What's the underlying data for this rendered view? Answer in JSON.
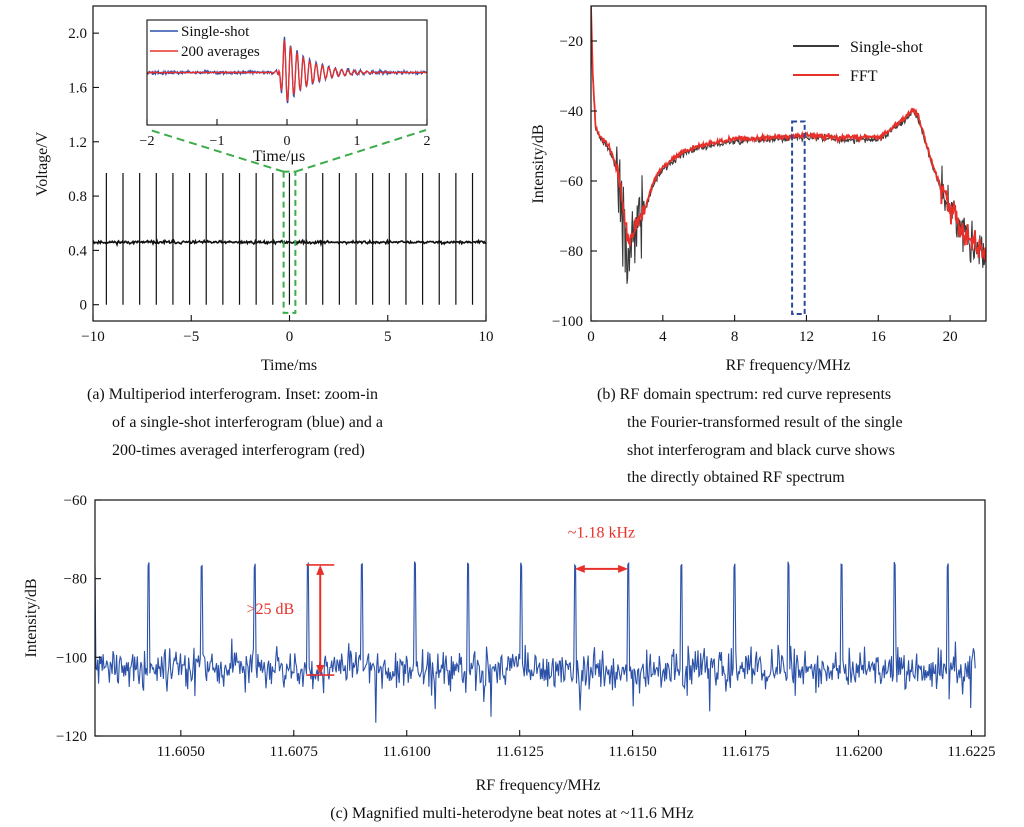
{
  "colors": {
    "single_shot_blue": "#2f4fb0",
    "average_red": "#e8302a",
    "single_shot_black": "#3a3a3a",
    "fft_red": "#e8302a",
    "beat_blue": "#2c52a8",
    "zoom_box_green": "#3cab4a",
    "zoom_box_blue": "#2a4a9a",
    "annotation_red": "#e8302a"
  },
  "chart_data": [
    {
      "id": "a",
      "type": "line",
      "title": "",
      "xlabel": "Time/ms",
      "ylabel": "Voltage/V",
      "xlim": [
        -10,
        10
      ],
      "ylim": [
        -0.12,
        2.2
      ],
      "xticks": [
        -10,
        -5,
        0,
        5,
        10
      ],
      "xtick_labels": [
        "−10",
        "−5",
        "0",
        "5",
        "10"
      ],
      "yticks": [
        0,
        0.4,
        0.8,
        1.2,
        1.6,
        2.0
      ],
      "ytick_labels": [
        "0",
        "0.4",
        "0.8",
        "1.2",
        "1.6",
        "2.0"
      ],
      "baseline_V": 0.46,
      "pulse_period_ms": 0.847,
      "pulse_count": 23,
      "pulse_first_ms": -9.32,
      "pulse_max_V": 0.97,
      "pulse_min_V": 0.0,
      "series": [
        {
          "name": "Multiperiod interferogram",
          "color": "#111111"
        }
      ],
      "zoom_box_ms": [
        -0.3,
        0.3
      ],
      "caption_lines": [
        "(a) Multiperiod interferogram. Inset: zoom-in",
        "of a single-shot interferogram (blue) and a",
        "200-times averaged interferogram (red)"
      ],
      "inset": {
        "xlabel": "Time/μs",
        "xlim": [
          -2,
          2
        ],
        "xticks": [
          -2,
          -1,
          0,
          1,
          2
        ],
        "xtick_labels": [
          "−2",
          "−1",
          "0",
          "1",
          "2"
        ],
        "legend_position": "top-left",
        "series": [
          {
            "name": "Single-shot",
            "color": "#2f4fb0"
          },
          {
            "name": "200 averages",
            "color": "#e8302a"
          }
        ]
      }
    },
    {
      "id": "b",
      "type": "line",
      "title": "",
      "xlabel": "RF frequency/MHz",
      "ylabel": "Intensity/dB",
      "xlim": [
        0,
        22
      ],
      "ylim": [
        -100,
        -10
      ],
      "xticks": [
        0,
        4,
        8,
        12,
        16,
        20
      ],
      "xtick_labels": [
        "0",
        "4",
        "8",
        "12",
        "16",
        "20"
      ],
      "yticks": [
        -100,
        -80,
        -60,
        -40,
        -20
      ],
      "ytick_labels": [
        "−100",
        "−80",
        "−60",
        "−40",
        "−20"
      ],
      "legend_position": "top-right",
      "series": [
        {
          "name": "Single-shot",
          "color": "#3a3a3a"
        },
        {
          "name": "FFT",
          "color": "#e8302a"
        }
      ],
      "envelope": {
        "x": [
          0,
          0.1,
          0.25,
          0.5,
          1.0,
          1.5,
          1.9,
          2.1,
          2.5,
          3.0,
          3.5,
          4.0,
          5.0,
          6.0,
          8.0,
          10.0,
          12.0,
          14.0,
          15.0,
          16.0,
          16.5,
          17.0,
          17.5,
          17.9,
          18.2,
          18.6,
          19.0,
          19.5,
          20.0,
          20.5,
          21.0,
          21.5,
          22.0
        ],
        "y": [
          -10,
          -30,
          -44,
          -47,
          -50,
          -57,
          -72,
          -76,
          -73,
          -68,
          -60,
          -56,
          -52,
          -50,
          -48,
          -47.5,
          -47,
          -47.5,
          -47.5,
          -47.5,
          -46,
          -44,
          -42,
          -39.5,
          -41,
          -48,
          -55,
          -62,
          -67,
          -73,
          -76,
          -79,
          -81
        ]
      },
      "zoom_box_MHz": [
        11.2,
        11.9
      ],
      "caption_lines": [
        "(b) RF domain spectrum: red curve represents",
        "the Fourier-transformed result of the single",
        "shot interferogram and black curve shows",
        "the directly obtained RF spectrum"
      ]
    },
    {
      "id": "c",
      "type": "line",
      "title": "",
      "xlabel": "RF frequency/MHz",
      "ylabel": "Intensity/dB",
      "xlim": [
        11.6031,
        11.6228
      ],
      "ylim": [
        -120,
        -60
      ],
      "xticks": [
        11.605,
        11.6075,
        11.61,
        11.6125,
        11.615,
        11.6175,
        11.62,
        11.6225
      ],
      "xtick_labels": [
        "11.6050",
        "11.6075",
        "11.6100",
        "11.6125",
        "11.6150",
        "11.6175",
        "11.6200",
        "11.6225"
      ],
      "yticks": [
        -120,
        -100,
        -80,
        -60
      ],
      "ytick_labels": [
        "−120",
        "−100",
        "−80",
        "−60"
      ],
      "series": [
        {
          "name": "Multi-heterodyne beat notes",
          "color": "#2c52a8"
        }
      ],
      "noise_floor_dB": -103,
      "beat_spacing_MHz": 0.00118,
      "beat_first_MHz": 11.6031,
      "beat_count": 17,
      "beat_peak_dB": -76.5,
      "annotations": {
        "spacing_label": "~1.18 kHz",
        "snr_label": ">25 dB"
      },
      "caption_lines": [
        "(c) Magnified multi-heterodyne beat notes at ~11.6 MHz"
      ]
    }
  ]
}
